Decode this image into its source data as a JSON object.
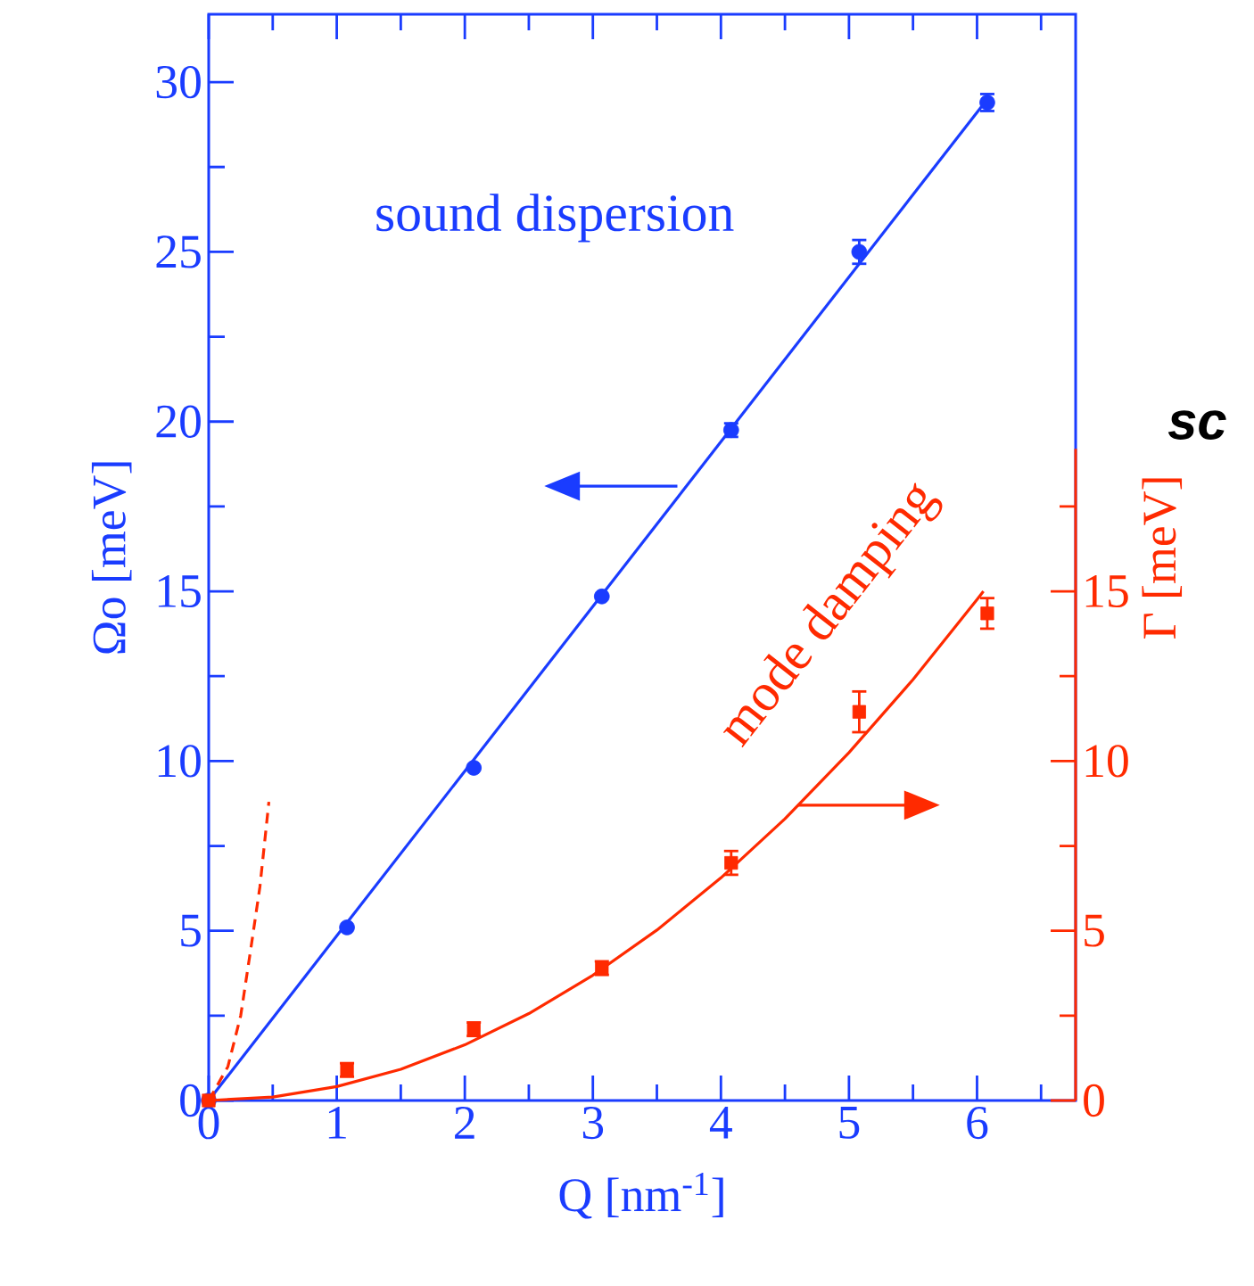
{
  "chart_data": {
    "type": "scatter",
    "xlabel": "Q [nm$^{-1}$]",
    "ylabel": "Ωo [meV]",
    "y2label": "Γ [meV]",
    "annotations": [
      "sound dispersion",
      "mode damping",
      "sc"
    ],
    "xlim": [
      0,
      6.77
    ],
    "ylim": [
      0,
      32
    ],
    "y2lim": [
      0,
      32
    ],
    "xticks": [
      0,
      {
        "value": 0.5,
        "label": null
      },
      1,
      {
        "value": 1.5,
        "label": null
      },
      2,
      {
        "value": 2.5,
        "label": null
      },
      3,
      {
        "value": 3.5,
        "label": null
      },
      4,
      {
        "value": 4.5,
        "label": null
      },
      5,
      {
        "value": 5.5,
        "label": null
      },
      6,
      {
        "value": 6.5,
        "label": null
      }
    ],
    "yticks": [
      0,
      {
        "value": 2.5,
        "label": null
      },
      5,
      {
        "value": 7.5,
        "label": null
      },
      10,
      {
        "value": 12.5,
        "label": null
      },
      15,
      {
        "value": 17.5,
        "label": null
      },
      20,
      {
        "value": 22.5,
        "label": null
      },
      25,
      {
        "value": 27.5,
        "label": null
      },
      30
    ],
    "y2ticks": [
      0,
      {
        "value": 2.5,
        "label": null
      },
      5,
      {
        "value": 7.5,
        "label": null
      },
      10,
      {
        "value": 12.5,
        "label": null
      },
      15,
      {
        "value": 17.5,
        "label": null
      }
    ],
    "series": [
      {
        "type": "scatter",
        "color": "#1a3cff",
        "marker": "circle",
        "x": [
          0,
          1.08,
          2.07,
          3.07,
          4.08,
          5.08,
          6.08
        ],
        "values": [
          0,
          5.1,
          9.8,
          14.85,
          19.75,
          25.0,
          29.4
        ],
        "errors": [
          null,
          null,
          null,
          null,
          0.2,
          0.35,
          0.25
        ]
      },
      {
        "type": "line",
        "color": "#1a3cff",
        "line_style": "solid",
        "x": [
          0,
          6.08
        ],
        "values": [
          0,
          29.5
        ]
      },
      {
        "type": "scatter",
        "axis": "y2",
        "color": "#ff2a00",
        "marker": "square",
        "x": [
          0,
          1.08,
          2.07,
          3.07,
          4.08,
          5.08,
          6.08
        ],
        "values": [
          0,
          0.9,
          2.1,
          3.9,
          7.0,
          11.45,
          14.35
        ],
        "errors": [
          null,
          0.2,
          0.2,
          0.2,
          0.35,
          0.6,
          0.45
        ]
      },
      {
        "type": "line",
        "axis": "y2",
        "color": "#ff2a00",
        "line_style": "solid",
        "x": [
          0,
          0.5,
          1,
          1.5,
          2,
          2.5,
          3,
          3.5,
          4,
          4.5,
          5,
          5.5,
          6,
          6.05
        ],
        "values": [
          0,
          0.1,
          0.41,
          0.92,
          1.64,
          2.56,
          3.69,
          5.02,
          6.56,
          8.3,
          10.25,
          12.4,
          14.76,
          15.0
        ]
      },
      {
        "type": "line",
        "axis": "y2",
        "color": "#ff2a00",
        "line_style": "dashed",
        "x": [
          0,
          0.15,
          0.25,
          0.33,
          0.4,
          0.47
        ],
        "values": [
          0,
          1.0,
          2.5,
          4.5,
          6.3,
          8.8
        ]
      }
    ]
  }
}
